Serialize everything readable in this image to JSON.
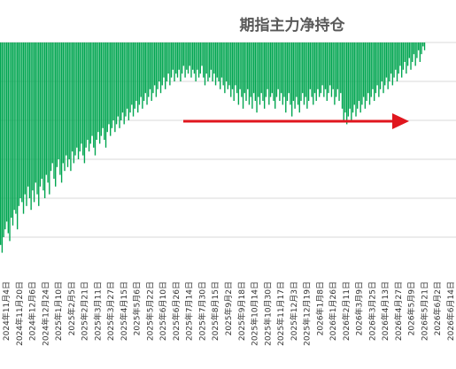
{
  "chart_data": {
    "type": "bar",
    "title": "期指主力净持仓",
    "xlabel": "",
    "ylabel": "",
    "ylim": [
      -60000,
      0
    ],
    "y_ticks": [
      0,
      -10000,
      -20000,
      -30000,
      -40000,
      -50000
    ],
    "y_tick_labels_visible": false,
    "grid": "horizontal",
    "legend": "none",
    "bar_color": "#00a550",
    "arrow_color": "#e0161e",
    "arrow_note": "horizontal red arrow pointing right across the chart",
    "category_labels": [
      "2024年11月4日",
      "2024年11月20日",
      "2024年12月6日",
      "2024年12月24日",
      "2025年1月10日",
      "2025年2月5日",
      "2025年2月21日",
      "2025年3月11日",
      "2025年3月27日",
      "2025年4月15日",
      "2025年5月6日",
      "2025年5月22日",
      "2025年6月10日",
      "2025年6月26日",
      "2025年7月14日",
      "2025年7月30日",
      "2025年8月15日",
      "2025年9月2日",
      "2025年9月18日",
      "2025年10月14日",
      "2025年10月30日",
      "2025年11月17日",
      "2025年12月3日",
      "2025年12月19日",
      "2026年1月8日",
      "2026年1月26日",
      "2026年2月11日",
      "2026年3月9日",
      "2026年3月25日",
      "2026年4月13日",
      "2026年4月27日",
      "2026年5月9日",
      "2026年5月21日",
      "2026年6月2日",
      "2026年6月14日"
    ],
    "values": [
      -52000,
      -54000,
      -50000,
      -48000,
      -46000,
      -49000,
      -51000,
      -45000,
      -47000,
      -43000,
      -44000,
      -48000,
      -42000,
      -40000,
      -41000,
      -44000,
      -39000,
      -42000,
      -37000,
      -40000,
      -43000,
      -38000,
      -41000,
      -36000,
      -39000,
      -42000,
      -37000,
      -35000,
      -38000,
      -40000,
      -34000,
      -36000,
      -39000,
      -33000,
      -31000,
      -35000,
      -37000,
      -32000,
      -30000,
      -34000,
      -36000,
      -31000,
      -33000,
      -29000,
      -32000,
      -30000,
      -33000,
      -28000,
      -31000,
      -29000,
      -27000,
      -30000,
      -28000,
      -26000,
      -29000,
      -31000,
      -27000,
      -25000,
      -28000,
      -26000,
      -24000,
      -27000,
      -29000,
      -25000,
      -23000,
      -26000,
      -24000,
      -22000,
      -25000,
      -27000,
      -23000,
      -21000,
      -24000,
      -22000,
      -20000,
      -23000,
      -21000,
      -19000,
      -22000,
      -20000,
      -18000,
      -21000,
      -19000,
      -17000,
      -20000,
      -18000,
      -16000,
      -19000,
      -17000,
      -15000,
      -18000,
      -16000,
      -14000,
      -17000,
      -15000,
      -13000,
      -16000,
      -14000,
      -12000,
      -15000,
      -13000,
      -11000,
      -14000,
      -12000,
      -10000,
      -13000,
      -11000,
      -9000,
      -12000,
      -10000,
      -8000,
      -11000,
      -9000,
      -7000,
      -10000,
      -8000,
      -9000,
      -7000,
      -10000,
      -8000,
      -6000,
      -9000,
      -7000,
      -8000,
      -6000,
      -9000,
      -7000,
      -8000,
      -10000,
      -7000,
      -9000,
      -8000,
      -6000,
      -9000,
      -11000,
      -8000,
      -10000,
      -9000,
      -7000,
      -10000,
      -8000,
      -11000,
      -9000,
      -10000,
      -12000,
      -9000,
      -11000,
      -13000,
      -10000,
      -12000,
      -11000,
      -14000,
      -12000,
      -15000,
      -11000,
      -13000,
      -16000,
      -12000,
      -14000,
      -17000,
      -13000,
      -15000,
      -12000,
      -16000,
      -14000,
      -17000,
      -13000,
      -15000,
      -18000,
      -14000,
      -16000,
      -13000,
      -15000,
      -17000,
      -14000,
      -12000,
      -16000,
      -14000,
      -13000,
      -15000,
      -17000,
      -14000,
      -12000,
      -15000,
      -13000,
      -16000,
      -14000,
      -18000,
      -15000,
      -13000,
      -16000,
      -19000,
      -15000,
      -17000,
      -14000,
      -16000,
      -18000,
      -15000,
      -13000,
      -16000,
      -14000,
      -17000,
      -15000,
      -12000,
      -14000,
      -16000,
      -13000,
      -15000,
      -12000,
      -14000,
      -13000,
      -11000,
      -14000,
      -12000,
      -15000,
      -13000,
      -11000,
      -14000,
      -12000,
      -16000,
      -14000,
      -12000,
      -15000,
      -13000,
      -17000,
      -20000,
      -18000,
      -21000,
      -19000,
      -17000,
      -20000,
      -18000,
      -16000,
      -19000,
      -17000,
      -15000,
      -18000,
      -16000,
      -14000,
      -17000,
      -15000,
      -13000,
      -16000,
      -14000,
      -12000,
      -15000,
      -13000,
      -11000,
      -14000,
      -12000,
      -10000,
      -13000,
      -11000,
      -9000,
      -12000,
      -10000,
      -8000,
      -11000,
      -9000,
      -7000,
      -10000,
      -8000,
      -6000,
      -9000,
      -7000,
      -5000,
      -8000,
      -6000,
      -4000,
      -7000,
      -5000,
      -3000,
      -6000,
      -4000,
      -2000,
      -5000,
      -3000,
      -1000,
      -2000,
      0,
      0,
      0,
      0,
      0,
      0,
      0,
      0,
      0,
      0,
      0,
      0,
      0,
      0,
      0,
      0,
      0,
      0,
      0,
      0
    ]
  }
}
